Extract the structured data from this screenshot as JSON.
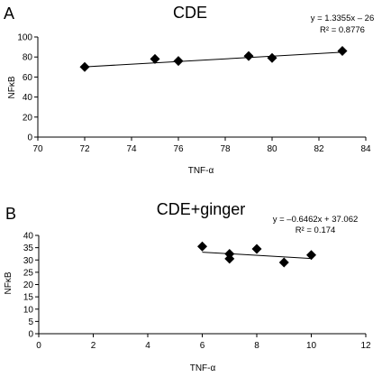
{
  "chart_data": [
    {
      "panel": "A",
      "type": "scatter",
      "title": "CDE",
      "xlabel": "TNF-α",
      "ylabel": "NFκB",
      "xlim": [
        70,
        84
      ],
      "ylim": [
        0,
        100
      ],
      "xticks": [
        70,
        72,
        74,
        76,
        78,
        80,
        82,
        84
      ],
      "yticks": [
        0,
        20,
        40,
        60,
        80,
        100
      ],
      "points": [
        {
          "x": 72,
          "y": 70
        },
        {
          "x": 75,
          "y": 78
        },
        {
          "x": 76,
          "y": 76
        },
        {
          "x": 79,
          "y": 81
        },
        {
          "x": 80,
          "y": 79
        },
        {
          "x": 83,
          "y": 86
        }
      ],
      "trendline": {
        "slope": 1.3355,
        "intercept": -26,
        "equation": "y = 1.3355x – 26",
        "r2": "R² = 0.8776"
      },
      "grid": false,
      "marker_color": "#000000"
    },
    {
      "panel": "B",
      "type": "scatter",
      "title": "CDE+ginger",
      "xlabel": "TNF-α",
      "ylabel": "NFκB",
      "xlim": [
        0,
        12
      ],
      "ylim": [
        0,
        40
      ],
      "xticks": [
        0,
        2,
        4,
        6,
        8,
        10,
        12
      ],
      "yticks": [
        0,
        5,
        10,
        15,
        20,
        25,
        30,
        35,
        40
      ],
      "points": [
        {
          "x": 6,
          "y": 35.5
        },
        {
          "x": 7,
          "y": 32.5
        },
        {
          "x": 7,
          "y": 30.5
        },
        {
          "x": 8,
          "y": 34.5
        },
        {
          "x": 9,
          "y": 29
        },
        {
          "x": 10,
          "y": 32
        }
      ],
      "trendline": {
        "slope": -0.6462,
        "intercept": 37.062,
        "equation": "y = –0.6462x + 37.062",
        "r2": "R² = 0.174"
      },
      "grid": false,
      "marker_color": "#000000"
    }
  ]
}
